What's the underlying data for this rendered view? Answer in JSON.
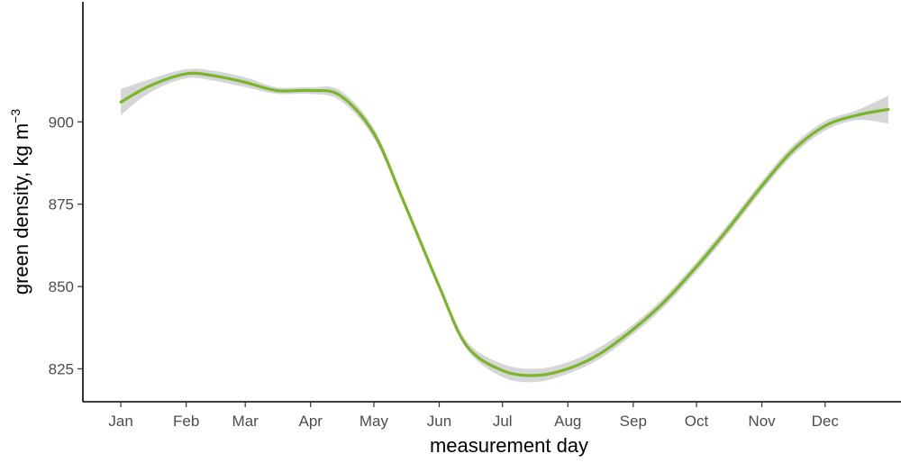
{
  "chart_data": {
    "type": "line",
    "title": "",
    "xlabel": "measurement day",
    "ylabel_text": "green density, kg m",
    "ylabel_superscript": "−3",
    "x_tick_labels": [
      "Jan",
      "Feb",
      "Mar",
      "Apr",
      "May",
      "Jun",
      "Jul",
      "Aug",
      "Sep",
      "Oct",
      "Nov",
      "Dec"
    ],
    "x_tick_days": [
      1,
      32,
      60,
      91,
      121,
      152,
      182,
      213,
      244,
      274,
      305,
      335
    ],
    "y_ticks": [
      825,
      850,
      875,
      900
    ],
    "xlim": [
      -17,
      371
    ],
    "ylim": [
      815,
      937
    ],
    "grid": false,
    "colors": {
      "line": "#7ab52a",
      "band": "#d6d6d6",
      "axis": "#000000"
    },
    "series": [
      {
        "x": [
          1,
          15,
          32,
          45,
          60,
          75,
          91,
          105,
          121,
          135,
          152,
          165,
          182,
          198,
          213,
          228,
          244,
          259,
          274,
          289,
          305,
          320,
          335,
          350,
          365
        ],
        "y": [
          906,
          911,
          914.6,
          914,
          912,
          909.5,
          909.5,
          908,
          896.5,
          876,
          850,
          832,
          824.5,
          823,
          825,
          829.5,
          837,
          845.5,
          856,
          867.5,
          880.5,
          891.5,
          898.8,
          902,
          903.8
        ],
        "lower": [
          902,
          909,
          913.2,
          912.5,
          910.5,
          908.5,
          908.5,
          906.5,
          895,
          875,
          849,
          831,
          822.5,
          821,
          823.5,
          828,
          835.5,
          844,
          854.5,
          866,
          879,
          890,
          897.3,
          900.5,
          899.5
        ],
        "upper": [
          910,
          913,
          916,
          915.5,
          913.5,
          910.5,
          910.5,
          909.5,
          898,
          877,
          851,
          833.5,
          826.5,
          825,
          827,
          831.5,
          838.5,
          847,
          857.5,
          869,
          882,
          893,
          900.3,
          903.5,
          908
        ]
      }
    ]
  }
}
